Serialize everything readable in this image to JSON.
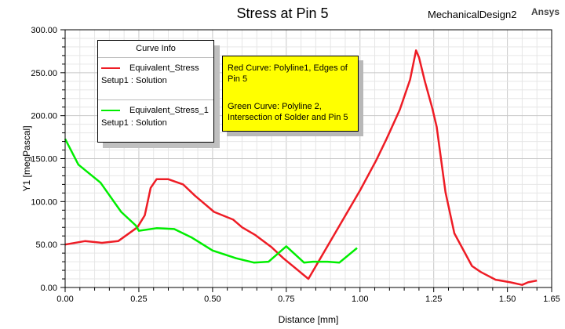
{
  "header": {
    "title": "Stress at Pin 5",
    "project": "MechanicalDesign2",
    "brand": "Ansys"
  },
  "legend": {
    "title": "Curve Info",
    "entries": [
      {
        "name": "Equivalent_Stress",
        "source": "Setup1 : Solution",
        "color": "#ee1c25"
      },
      {
        "name": "Equivalent_Stress_1",
        "source": "Setup1 : Solution",
        "color": "#00ee00"
      }
    ]
  },
  "note": {
    "line1": "Red Curve: Polyline1, Edges of",
    "line2": "Pin 5",
    "line3": "Green Curve: Polyline 2,",
    "line4": "Intersection of Solder and Pin 5"
  },
  "chart_data": {
    "type": "line",
    "title": "Stress at Pin 5",
    "xlabel": "Distance [mm]",
    "ylabel": "Y1 [megPascal]",
    "xlim": [
      0,
      1.65
    ],
    "ylim": [
      0,
      300
    ],
    "grid": true,
    "xticks": [
      "0.00",
      "0.25",
      "0.50",
      "0.75",
      "1.00",
      "1.25",
      "1.50",
      "1.65"
    ],
    "xtick_values": [
      0,
      0.25,
      0.5,
      0.75,
      1.0,
      1.25,
      1.5,
      1.65
    ],
    "yticks": [
      "0.00",
      "50.00",
      "100.00",
      "150.00",
      "200.00",
      "250.00",
      "300.00"
    ],
    "ytick_values": [
      0,
      50,
      100,
      150,
      200,
      250,
      300
    ],
    "series": [
      {
        "name": "Equivalent_Stress",
        "color": "#ee1c25",
        "x": [
          0,
          0.067,
          0.125,
          0.18,
          0.245,
          0.27,
          0.29,
          0.31,
          0.35,
          0.4,
          0.44,
          0.505,
          0.57,
          0.6,
          0.645,
          0.7,
          0.74,
          0.825,
          1.0,
          1.055,
          1.09,
          1.135,
          1.17,
          1.19,
          1.2,
          1.22,
          1.245,
          1.26,
          1.29,
          1.32,
          1.38,
          1.41,
          1.46,
          1.51,
          1.55,
          1.57,
          1.6
        ],
        "y": [
          50,
          54,
          52,
          54,
          70,
          84,
          116,
          126,
          126,
          120,
          107,
          88,
          79,
          70,
          61,
          47,
          34,
          10,
          113,
          148,
          173,
          207,
          242,
          276,
          268,
          240,
          209,
          187,
          111,
          63,
          25,
          18,
          9,
          6,
          3,
          6,
          8
        ]
      },
      {
        "name": "Equivalent_Stress_1",
        "color": "#00ee00",
        "x": [
          0,
          0.045,
          0.12,
          0.19,
          0.24,
          0.25,
          0.31,
          0.37,
          0.43,
          0.5,
          0.58,
          0.64,
          0.69,
          0.75,
          0.81,
          0.84,
          0.89,
          0.93,
          0.99
        ],
        "y": [
          173,
          143,
          122,
          88,
          72,
          66,
          69,
          68,
          58,
          43,
          34,
          29,
          30,
          48,
          29,
          30,
          30,
          29,
          46
        ]
      }
    ]
  }
}
